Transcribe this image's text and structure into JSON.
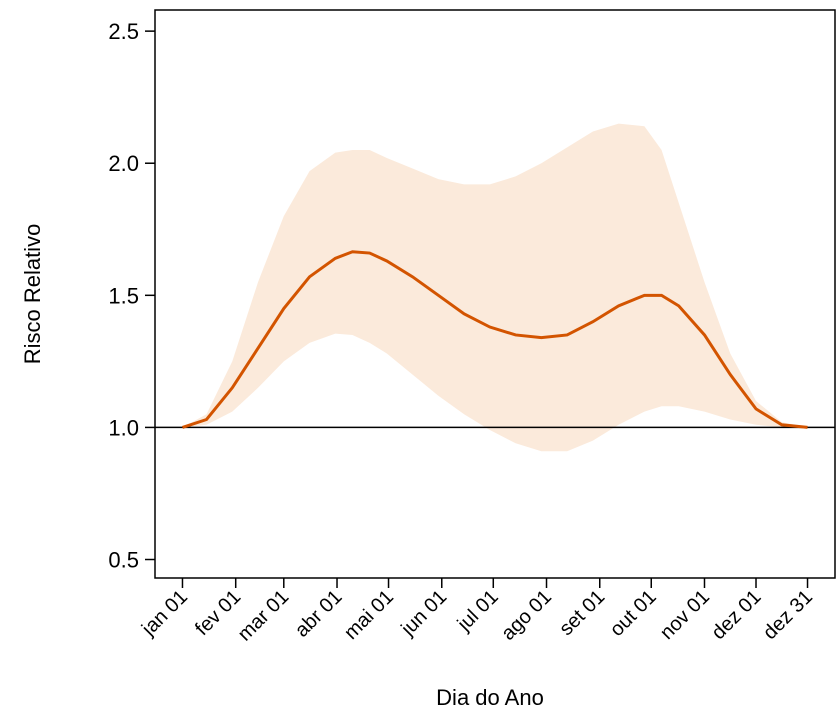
{
  "chart_data": {
    "type": "line",
    "xlabel": "Dia do Ano",
    "ylabel": "Risco Relativo",
    "x": [
      1,
      15,
      30,
      45,
      60,
      75,
      90,
      100,
      110,
      120,
      135,
      150,
      165,
      180,
      195,
      210,
      225,
      240,
      255,
      270,
      280,
      290,
      305,
      320,
      335,
      350,
      365
    ],
    "series": [
      {
        "color": "#d35400",
        "values": [
          1.0,
          1.03,
          1.15,
          1.3,
          1.45,
          1.57,
          1.64,
          1.665,
          1.66,
          1.63,
          1.57,
          1.5,
          1.43,
          1.38,
          1.35,
          1.34,
          1.35,
          1.4,
          1.46,
          1.5,
          1.5,
          1.46,
          1.35,
          1.2,
          1.07,
          1.01,
          1.0
        ]
      }
    ],
    "band": {
      "color": "#fbeadb",
      "lower": [
        1.0,
        1.01,
        1.06,
        1.15,
        1.25,
        1.32,
        1.355,
        1.35,
        1.32,
        1.28,
        1.2,
        1.12,
        1.05,
        0.99,
        0.94,
        0.91,
        0.91,
        0.95,
        1.01,
        1.06,
        1.08,
        1.08,
        1.06,
        1.03,
        1.01,
        1.0,
        1.0
      ],
      "upper": [
        1.0,
        1.05,
        1.25,
        1.55,
        1.8,
        1.97,
        2.04,
        2.05,
        2.05,
        2.02,
        1.98,
        1.94,
        1.92,
        1.92,
        1.95,
        2.0,
        2.06,
        2.12,
        2.15,
        2.14,
        2.05,
        1.85,
        1.55,
        1.28,
        1.1,
        1.02,
        1.0
      ]
    },
    "hline": 1,
    "xlim": [
      -15,
      381
    ],
    "ylim": [
      0.43,
      2.58
    ],
    "xticks": [
      {
        "value": 1,
        "label": "jan 01"
      },
      {
        "value": 32,
        "label": "fev 01"
      },
      {
        "value": 60,
        "label": "mar 01"
      },
      {
        "value": 91,
        "label": "abr 01"
      },
      {
        "value": 121,
        "label": "mai 01"
      },
      {
        "value": 152,
        "label": "jun 01"
      },
      {
        "value": 182,
        "label": "jul 01"
      },
      {
        "value": 213,
        "label": "ago 01"
      },
      {
        "value": 244,
        "label": "set 01"
      },
      {
        "value": 274,
        "label": "out 01"
      },
      {
        "value": 305,
        "label": "nov 01"
      },
      {
        "value": 335,
        "label": "dez 01"
      },
      {
        "value": 365,
        "label": "dez 31"
      }
    ],
    "yticks": [
      0.5,
      {
        "value": 1,
        "label": "1.0"
      },
      1.5,
      {
        "value": 2,
        "label": "2.0"
      },
      2.5
    ]
  }
}
